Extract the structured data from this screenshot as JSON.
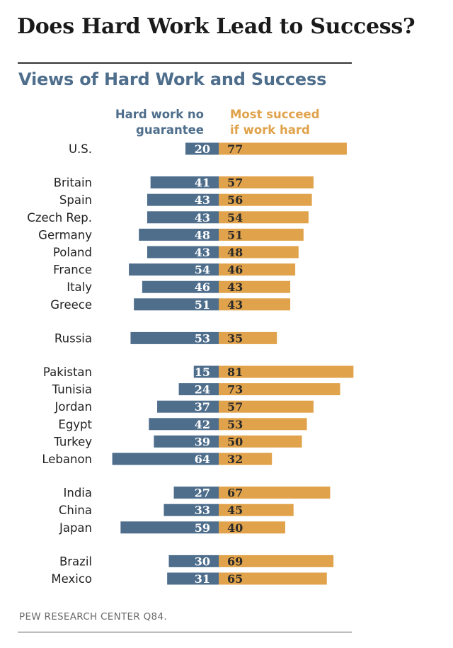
{
  "title": "Does Hard Work Lead to Success?",
  "source": "PEW RESEARCH  CENTER Q84.",
  "colors": {
    "no_guarantee": "#4e6e8c",
    "succeed": "#e0a24a",
    "subtitle": "#4e6e8c"
  },
  "chart_data": {
    "type": "bar",
    "title": "Views of Hard Work and Success",
    "orientation": "horizontal-diverging",
    "categories": [
      "U.S.",
      "Britain",
      "Spain",
      "Czech Rep.",
      "Germany",
      "Poland",
      "France",
      "Italy",
      "Greece",
      "Russia",
      "Pakistan",
      "Tunisia",
      "Jordan",
      "Egypt",
      "Turkey",
      "Lebanon",
      "India",
      "China",
      "Japan",
      "Brazil",
      "Mexico"
    ],
    "groups": [
      [
        "U.S."
      ],
      [
        "Britain",
        "Spain",
        "Czech Rep.",
        "Germany",
        "Poland",
        "France",
        "Italy",
        "Greece"
      ],
      [
        "Russia"
      ],
      [
        "Pakistan",
        "Tunisia",
        "Jordan",
        "Egypt",
        "Turkey",
        "Lebanon"
      ],
      [
        "India",
        "China",
        "Japan"
      ],
      [
        "Brazil",
        "Mexico"
      ]
    ],
    "series": [
      {
        "name_lines": [
          "Hard work no",
          "guarantee"
        ],
        "color": "#4e6e8c",
        "values": [
          20,
          41,
          43,
          43,
          48,
          43,
          54,
          46,
          51,
          53,
          15,
          24,
          37,
          42,
          39,
          64,
          27,
          33,
          59,
          30,
          31
        ]
      },
      {
        "name_lines": [
          "Most succeed",
          "if work hard"
        ],
        "color": "#e0a24a",
        "values": [
          77,
          57,
          56,
          54,
          51,
          48,
          46,
          43,
          43,
          35,
          81,
          73,
          57,
          53,
          50,
          32,
          67,
          45,
          40,
          69,
          65
        ]
      }
    ],
    "legend": "top",
    "grid": false
  }
}
